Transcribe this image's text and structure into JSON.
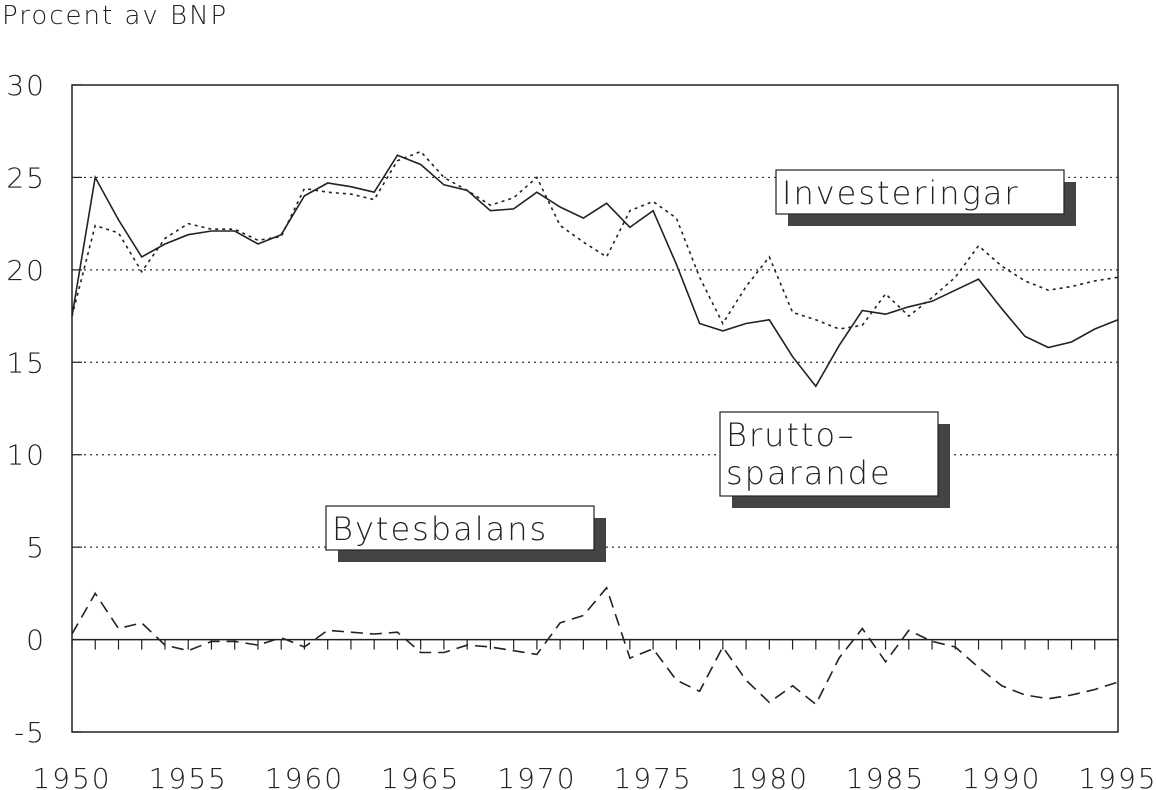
{
  "chart_data": {
    "type": "line",
    "ylabel": "Procent av BNP",
    "x": [
      1950,
      1951,
      1952,
      1953,
      1954,
      1955,
      1956,
      1957,
      1958,
      1959,
      1960,
      1961,
      1962,
      1963,
      1964,
      1965,
      1966,
      1967,
      1968,
      1969,
      1970,
      1971,
      1972,
      1973,
      1974,
      1975,
      1976,
      1977,
      1978,
      1979,
      1980,
      1981,
      1982,
      1983,
      1984,
      1985,
      1986,
      1987,
      1988,
      1989,
      1990,
      1991,
      1992,
      1993,
      1994,
      1995
    ],
    "xlim": [
      1950,
      1995
    ],
    "xticks": [
      1950,
      1955,
      1960,
      1965,
      1970,
      1975,
      1980,
      1985,
      1990,
      1995
    ],
    "ylim": [
      -5,
      30
    ],
    "yticks": [
      -5,
      0,
      5,
      10,
      15,
      20,
      25,
      30
    ],
    "grid": true,
    "series": [
      {
        "name": "Investeringar",
        "color": "#222",
        "style": "dotted",
        "values": [
          17.5,
          22.4,
          22.0,
          19.9,
          21.7,
          22.5,
          22.2,
          22.2,
          21.6,
          21.8,
          24.4,
          24.2,
          24.1,
          23.8,
          25.9,
          26.4,
          25.0,
          24.3,
          23.5,
          23.9,
          25.0,
          22.4,
          21.5,
          20.7,
          23.2,
          23.7,
          22.8,
          19.6,
          17.1,
          19.1,
          20.7,
          17.7,
          17.3,
          16.8,
          17.0,
          18.7,
          17.5,
          18.5,
          19.6,
          21.3,
          20.2,
          19.4,
          18.9,
          19.1,
          19.4,
          19.6
        ]
      },
      {
        "name": [
          "Brutto–",
          "sparande"
        ],
        "color": "#222",
        "style": "solid",
        "values": [
          17.5,
          25.0,
          22.7,
          20.7,
          21.4,
          21.9,
          22.1,
          22.1,
          21.4,
          21.9,
          24.0,
          24.7,
          24.5,
          24.2,
          26.2,
          25.7,
          24.6,
          24.3,
          23.2,
          23.3,
          24.2,
          23.4,
          22.8,
          23.6,
          22.3,
          23.2,
          20.3,
          17.1,
          16.7,
          17.1,
          17.3,
          15.3,
          13.7,
          15.9,
          17.8,
          17.6,
          18.0,
          18.3,
          18.9,
          19.5,
          17.9,
          16.4,
          15.8,
          16.1,
          16.8,
          17.3
        ]
      },
      {
        "name": "Bytesbalans",
        "color": "#222",
        "style": "dashed",
        "values": [
          0.3,
          2.5,
          0.6,
          0.9,
          -0.3,
          -0.6,
          -0.1,
          -0.1,
          -0.3,
          0.1,
          -0.4,
          0.5,
          0.4,
          0.3,
          0.4,
          -0.7,
          -0.7,
          -0.3,
          -0.4,
          -0.6,
          -0.8,
          0.9,
          1.3,
          2.8,
          -1.0,
          -0.5,
          -2.2,
          -2.8,
          -0.4,
          -2.2,
          -3.4,
          -2.5,
          -3.5,
          -1.0,
          0.6,
          -1.2,
          0.5,
          -0.1,
          -0.4,
          -1.5,
          -2.5,
          -3.0,
          -3.2,
          -3.0,
          -2.7,
          -2.3
        ]
      }
    ]
  }
}
